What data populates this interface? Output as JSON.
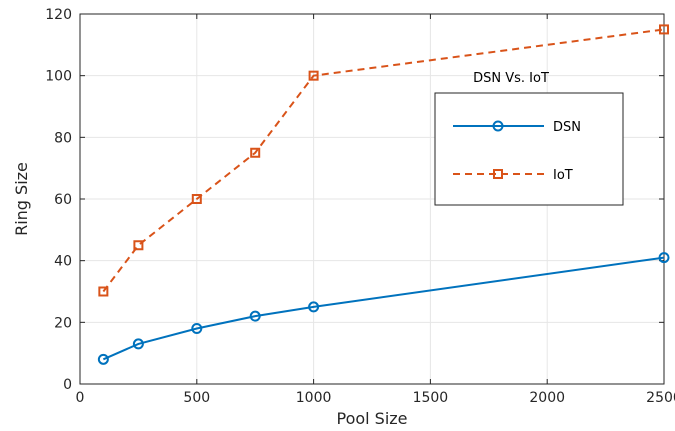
{
  "chart_data": {
    "type": "line",
    "xlabel": "Pool Size",
    "ylabel": "Ring Size",
    "xlim": [
      0,
      2500
    ],
    "ylim": [
      0,
      120
    ],
    "xticks": [
      0,
      500,
      1000,
      1500,
      2000,
      2500
    ],
    "yticks": [
      0,
      20,
      40,
      60,
      80,
      100,
      120
    ],
    "grid": true,
    "legend": {
      "title": "DSN Vs. IoT",
      "placement": "top-right"
    },
    "series": [
      {
        "name": "DSN",
        "color": "#0072BD",
        "line_style": "solid",
        "marker": "circle",
        "x": [
          100,
          250,
          500,
          750,
          1000,
          2500
        ],
        "y": [
          8,
          13,
          18,
          22,
          25,
          41
        ]
      },
      {
        "name": "IoT",
        "color": "#D95319",
        "line_style": "dashed",
        "marker": "square",
        "x": [
          100,
          250,
          500,
          750,
          1000,
          2500
        ],
        "y": [
          30,
          45,
          60,
          75,
          100,
          115
        ]
      }
    ]
  }
}
